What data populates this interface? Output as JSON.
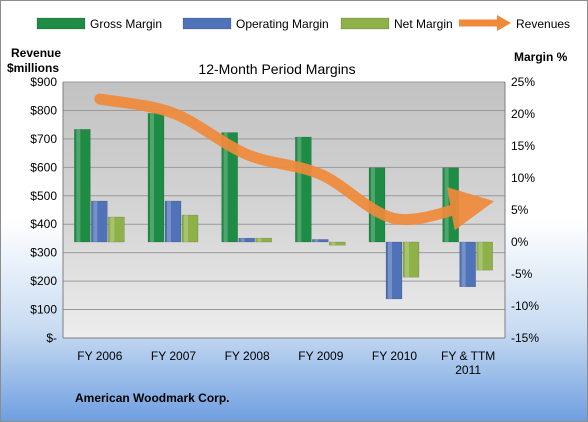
{
  "chart_data": {
    "type": "bar",
    "title": "12-Month Period Margins",
    "footer": "American Woodmark Corp.",
    "y_left_label": [
      "Revenue",
      "$millions"
    ],
    "y_right_label": "Margin %",
    "categories": [
      "FY 2006",
      "FY 2007",
      "FY 2008",
      "FY 2009",
      "FY 2010",
      "FY & TTM 2011"
    ],
    "category_lines": [
      [
        "FY 2006"
      ],
      [
        "FY 2007"
      ],
      [
        "FY 2008"
      ],
      [
        "FY 2009"
      ],
      [
        "FY 2010"
      ],
      [
        "FY & TTM",
        "2011"
      ]
    ],
    "y_left_ticks": [
      "$-",
      "$100",
      "$200",
      "$300",
      "$400",
      "$500",
      "$600",
      "$700",
      "$800",
      "$900"
    ],
    "y_right_ticks": [
      "-15%",
      "-10%",
      "-5%",
      "0%",
      "5%",
      "10%",
      "15%",
      "20%",
      "25%"
    ],
    "ylim_left": [
      0,
      900
    ],
    "ylim_right": [
      -15,
      25
    ],
    "series": [
      {
        "name": "Gross Margin",
        "kind": "bar",
        "axis": "right",
        "values": [
          17.6,
          20.1,
          17.1,
          16.4,
          11.6,
          11.6
        ],
        "color": "#1e8c45"
      },
      {
        "name": "Operating Margin",
        "kind": "bar",
        "axis": "right",
        "values": [
          6.4,
          6.4,
          0.6,
          0.4,
          -8.9,
          -7.0
        ],
        "color": "#4f72b8"
      },
      {
        "name": "Net Margin",
        "kind": "bar",
        "axis": "right",
        "values": [
          3.9,
          4.2,
          0.6,
          -0.5,
          -5.5,
          -4.4
        ],
        "color": "#8fb14a"
      },
      {
        "name": "Revenues",
        "kind": "line",
        "axis": "left",
        "values": [
          840,
          790,
          645,
          575,
          420,
          465
        ],
        "color": "#f08a3a"
      }
    ],
    "grid": true,
    "legend": "top"
  }
}
